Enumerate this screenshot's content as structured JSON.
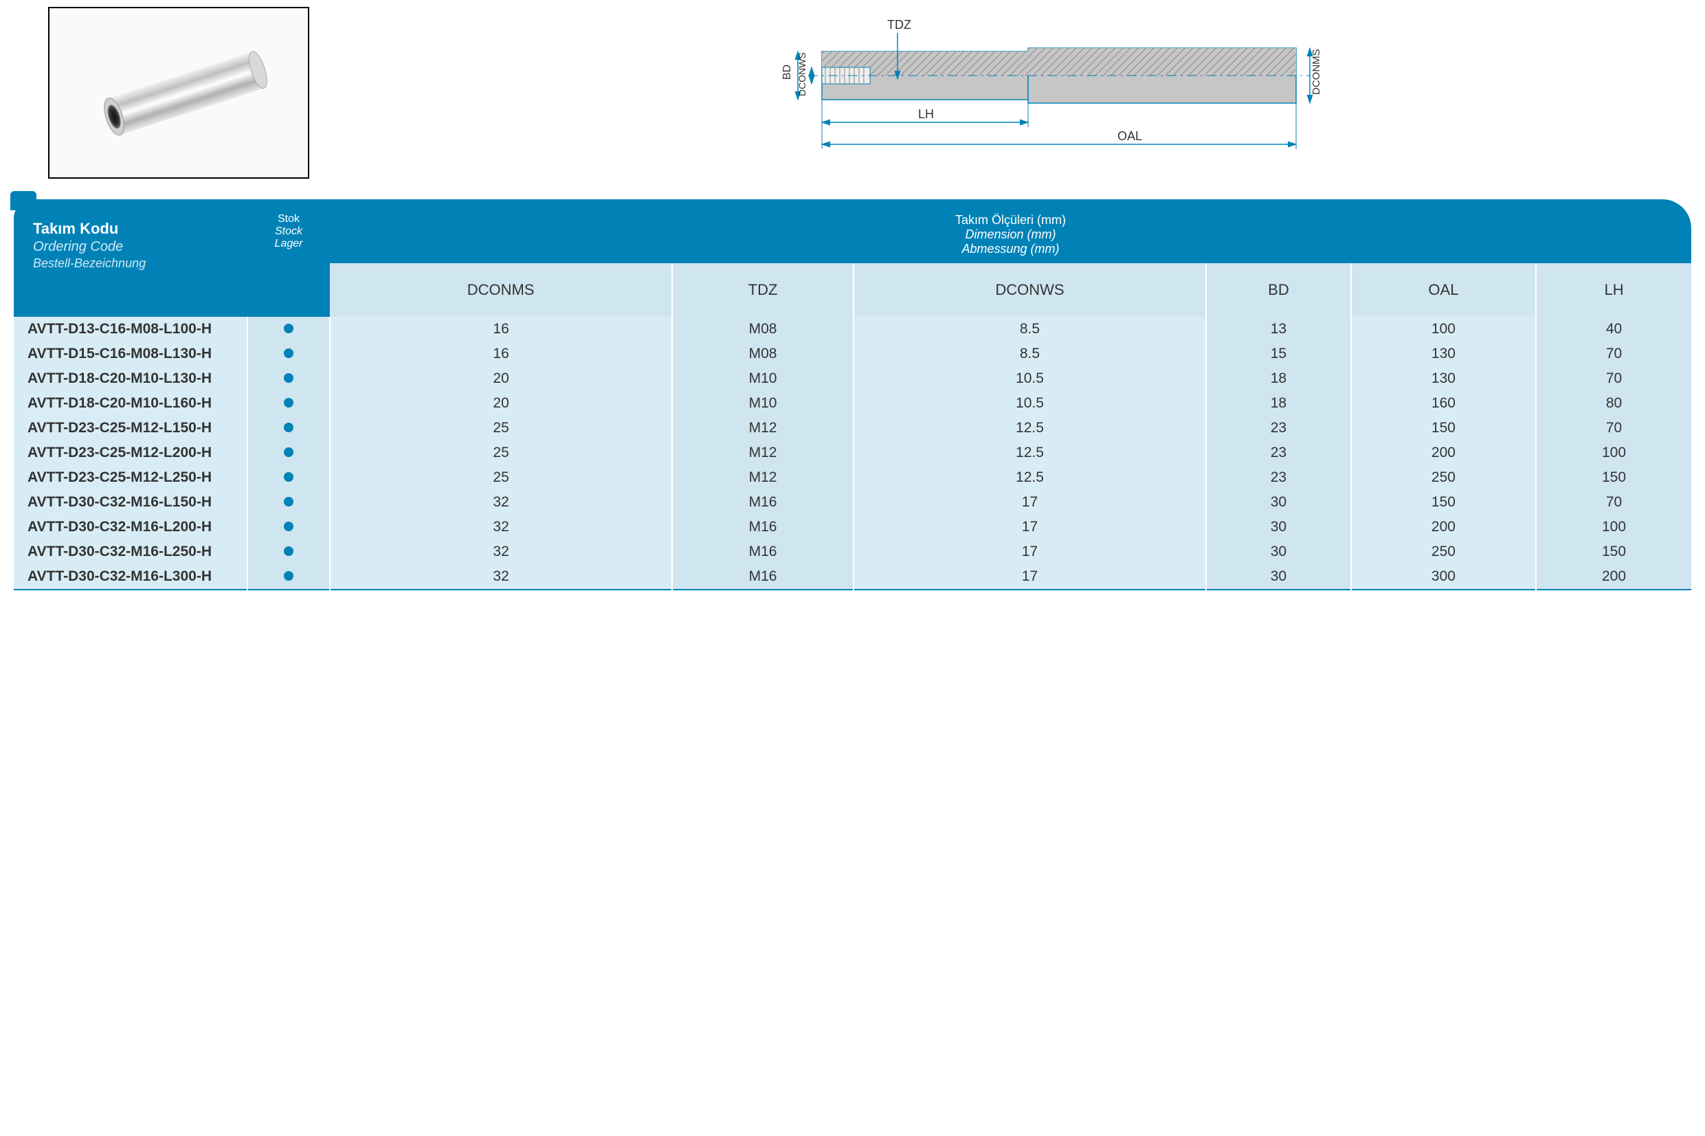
{
  "colors": {
    "header_bg": "#0082b7",
    "subheader_bg": "#cfe5f0",
    "row_alt_a": "#d8ecf5",
    "row_alt_b": "#cfe5f0",
    "stock_dot": "#0082b7",
    "diagram_fill": "#c6c6c6",
    "diagram_hatch": "#888888",
    "diagram_stroke": "#0082b7",
    "text": "#333333"
  },
  "fonts": {
    "base_family": "Arial",
    "code_title_pt": 22,
    "column_label_pt": 22,
    "data_pt": 21
  },
  "header": {
    "code": {
      "tr": "Takım Kodu",
      "en": "Ordering Code",
      "de": "Bestell-Bezeichnung"
    },
    "stock": {
      "tr": "Stok",
      "en": "Stock",
      "de": "Lager"
    },
    "dimensions": {
      "tr": "Takım Ölçüleri (mm)",
      "en": "Dimension (mm)",
      "de": "Abmessung (mm)"
    }
  },
  "columns": [
    "DCONMS",
    "TDZ",
    "DCONWS",
    "BD",
    "OAL",
    "LH"
  ],
  "diagram": {
    "labels": {
      "tdz": "TDZ",
      "bd": "BD",
      "dconws": "DCONWS",
      "dconms": "DCONMS",
      "lh": "LH",
      "oal": "OAL"
    }
  },
  "rows": [
    {
      "code": "AVTT-D13-C16-M08-L100-H",
      "stock": true,
      "DCONMS": "16",
      "TDZ": "M08",
      "DCONWS": "8.5",
      "BD": "13",
      "OAL": "100",
      "LH": "40"
    },
    {
      "code": "AVTT-D15-C16-M08-L130-H",
      "stock": true,
      "DCONMS": "16",
      "TDZ": "M08",
      "DCONWS": "8.5",
      "BD": "15",
      "OAL": "130",
      "LH": "70"
    },
    {
      "code": "AVTT-D18-C20-M10-L130-H",
      "stock": true,
      "DCONMS": "20",
      "TDZ": "M10",
      "DCONWS": "10.5",
      "BD": "18",
      "OAL": "130",
      "LH": "70"
    },
    {
      "code": "AVTT-D18-C20-M10-L160-H",
      "stock": true,
      "DCONMS": "20",
      "TDZ": "M10",
      "DCONWS": "10.5",
      "BD": "18",
      "OAL": "160",
      "LH": "80"
    },
    {
      "code": "AVTT-D23-C25-M12-L150-H",
      "stock": true,
      "DCONMS": "25",
      "TDZ": "M12",
      "DCONWS": "12.5",
      "BD": "23",
      "OAL": "150",
      "LH": "70"
    },
    {
      "code": "AVTT-D23-C25-M12-L200-H",
      "stock": true,
      "DCONMS": "25",
      "TDZ": "M12",
      "DCONWS": "12.5",
      "BD": "23",
      "OAL": "200",
      "LH": "100"
    },
    {
      "code": "AVTT-D23-C25-M12-L250-H",
      "stock": true,
      "DCONMS": "25",
      "TDZ": "M12",
      "DCONWS": "12.5",
      "BD": "23",
      "OAL": "250",
      "LH": "150"
    },
    {
      "code": "AVTT-D30-C32-M16-L150-H",
      "stock": true,
      "DCONMS": "32",
      "TDZ": "M16",
      "DCONWS": "17",
      "BD": "30",
      "OAL": "150",
      "LH": "70"
    },
    {
      "code": "AVTT-D30-C32-M16-L200-H",
      "stock": true,
      "DCONMS": "32",
      "TDZ": "M16",
      "DCONWS": "17",
      "BD": "30",
      "OAL": "200",
      "LH": "100"
    },
    {
      "code": "AVTT-D30-C32-M16-L250-H",
      "stock": true,
      "DCONMS": "32",
      "TDZ": "M16",
      "DCONWS": "17",
      "BD": "30",
      "OAL": "250",
      "LH": "150"
    },
    {
      "code": "AVTT-D30-C32-M16-L300-H",
      "stock": true,
      "DCONMS": "32",
      "TDZ": "M16",
      "DCONWS": "17",
      "BD": "30",
      "OAL": "300",
      "LH": "200"
    }
  ]
}
